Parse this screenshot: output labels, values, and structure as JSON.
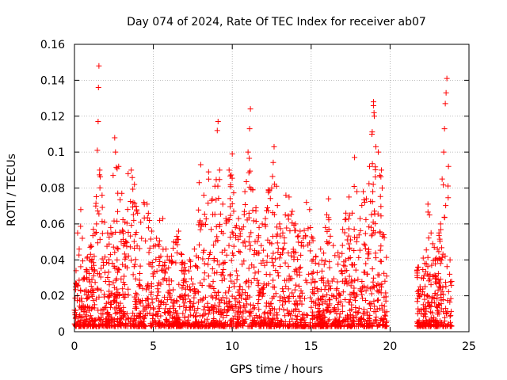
{
  "chart_data": {
    "type": "scatter",
    "title": "Day 074 of 2024, Rate Of TEC Index for receiver ab07",
    "xlabel": "GPS time / hours",
    "ylabel": "ROTI / TECUs",
    "xlim": [
      0,
      25
    ],
    "ylim": [
      0,
      0.16
    ],
    "x_ticks": [
      0,
      5,
      10,
      15,
      20,
      25
    ],
    "x_tick_labels": [
      "0",
      "5",
      "10",
      "15",
      "20",
      "25"
    ],
    "y_ticks": [
      0,
      0.02,
      0.04,
      0.06,
      0.08,
      0.1,
      0.12,
      0.14,
      0.16
    ],
    "y_tick_labels": [
      "0",
      "0.02",
      "0.04",
      "0.06",
      "0.08",
      "0.1",
      "0.12",
      "0.14",
      "0.16"
    ],
    "grid": true,
    "marker": "+",
    "color": "#ff0000",
    "data_gap_hours": [
      19.8,
      21.7
    ],
    "series": [
      {
        "name": "ROTI",
        "points": [
          [
            0.0,
            0.012
          ],
          [
            0.1,
            0.034
          ],
          [
            0.2,
            0.055
          ],
          [
            0.3,
            0.046
          ],
          [
            0.4,
            0.068
          ],
          [
            0.5,
            0.052
          ],
          [
            0.6,
            0.03
          ],
          [
            0.8,
            0.041
          ],
          [
            1.0,
            0.047
          ],
          [
            1.2,
            0.057
          ],
          [
            1.35,
            0.07
          ],
          [
            1.45,
            0.101
          ],
          [
            1.5,
            0.117
          ],
          [
            1.52,
            0.136
          ],
          [
            1.55,
            0.148
          ],
          [
            1.6,
            0.09
          ],
          [
            1.75,
            0.076
          ],
          [
            1.9,
            0.061
          ],
          [
            2.1,
            0.055
          ],
          [
            2.3,
            0.058
          ],
          [
            2.45,
            0.087
          ],
          [
            2.55,
            0.108
          ],
          [
            2.6,
            0.1
          ],
          [
            2.8,
            0.092
          ],
          [
            3.0,
            0.077
          ],
          [
            3.2,
            0.061
          ],
          [
            3.4,
            0.088
          ],
          [
            3.6,
            0.09
          ],
          [
            3.8,
            0.082
          ],
          [
            4.0,
            0.066
          ],
          [
            4.2,
            0.061
          ],
          [
            4.4,
            0.072
          ],
          [
            4.6,
            0.071
          ],
          [
            4.9,
            0.056
          ],
          [
            5.2,
            0.052
          ],
          [
            5.4,
            0.062
          ],
          [
            5.6,
            0.063
          ],
          [
            5.8,
            0.046
          ],
          [
            6.0,
            0.04
          ],
          [
            6.3,
            0.05
          ],
          [
            6.6,
            0.056
          ],
          [
            6.8,
            0.043
          ],
          [
            7.0,
            0.038
          ],
          [
            7.3,
            0.04
          ],
          [
            7.6,
            0.046
          ],
          [
            7.9,
            0.083
          ],
          [
            8.0,
            0.093
          ],
          [
            8.2,
            0.076
          ],
          [
            8.5,
            0.089
          ],
          [
            8.7,
            0.073
          ],
          [
            8.9,
            0.081
          ],
          [
            9.05,
            0.112
          ],
          [
            9.1,
            0.117
          ],
          [
            9.2,
            0.09
          ],
          [
            9.4,
            0.071
          ],
          [
            9.6,
            0.063
          ],
          [
            9.8,
            0.09
          ],
          [
            10.0,
            0.099
          ],
          [
            10.2,
            0.058
          ],
          [
            10.4,
            0.063
          ],
          [
            10.6,
            0.057
          ],
          [
            10.8,
            0.078
          ],
          [
            11.0,
            0.1
          ],
          [
            11.1,
            0.113
          ],
          [
            11.15,
            0.124
          ],
          [
            11.3,
            0.079
          ],
          [
            11.5,
            0.069
          ],
          [
            11.7,
            0.058
          ],
          [
            11.9,
            0.06
          ],
          [
            12.1,
            0.063
          ],
          [
            12.3,
            0.079
          ],
          [
            12.5,
            0.08
          ],
          [
            12.65,
            0.103
          ],
          [
            12.8,
            0.081
          ],
          [
            13.0,
            0.06
          ],
          [
            13.2,
            0.055
          ],
          [
            13.4,
            0.076
          ],
          [
            13.6,
            0.075
          ],
          [
            13.8,
            0.067
          ],
          [
            14.0,
            0.06
          ],
          [
            14.3,
            0.056
          ],
          [
            14.5,
            0.052
          ],
          [
            14.7,
            0.072
          ],
          [
            14.9,
            0.068
          ],
          [
            15.1,
            0.052
          ],
          [
            15.3,
            0.042
          ],
          [
            15.6,
            0.046
          ],
          [
            15.9,
            0.058
          ],
          [
            16.1,
            0.074
          ],
          [
            16.4,
            0.048
          ],
          [
            16.7,
            0.044
          ],
          [
            17.0,
            0.057
          ],
          [
            17.2,
            0.066
          ],
          [
            17.4,
            0.075
          ],
          [
            17.6,
            0.066
          ],
          [
            17.75,
            0.097
          ],
          [
            17.9,
            0.078
          ],
          [
            18.1,
            0.063
          ],
          [
            18.3,
            0.078
          ],
          [
            18.5,
            0.074
          ],
          [
            18.7,
            0.092
          ],
          [
            18.85,
            0.11
          ],
          [
            18.95,
            0.128
          ],
          [
            19.0,
            0.12
          ],
          [
            19.1,
            0.103
          ],
          [
            19.25,
            0.1
          ],
          [
            19.35,
            0.087
          ],
          [
            19.45,
            0.09
          ],
          [
            19.5,
            0.08
          ],
          [
            19.6,
            0.054
          ],
          [
            21.8,
            0.036
          ],
          [
            21.9,
            0.025
          ],
          [
            22.0,
            0.03
          ],
          [
            22.1,
            0.041
          ],
          [
            22.2,
            0.038
          ],
          [
            22.4,
            0.071
          ],
          [
            22.5,
            0.065
          ],
          [
            22.6,
            0.055
          ],
          [
            22.7,
            0.049
          ],
          [
            22.8,
            0.047
          ],
          [
            23.0,
            0.046
          ],
          [
            23.1,
            0.055
          ],
          [
            23.2,
            0.06
          ],
          [
            23.3,
            0.085
          ],
          [
            23.4,
            0.1
          ],
          [
            23.45,
            0.113
          ],
          [
            23.5,
            0.127
          ],
          [
            23.55,
            0.133
          ],
          [
            23.6,
            0.141
          ],
          [
            23.7,
            0.092
          ],
          [
            23.8,
            0.04
          ],
          [
            23.9,
            0.028
          ]
        ]
      }
    ]
  }
}
